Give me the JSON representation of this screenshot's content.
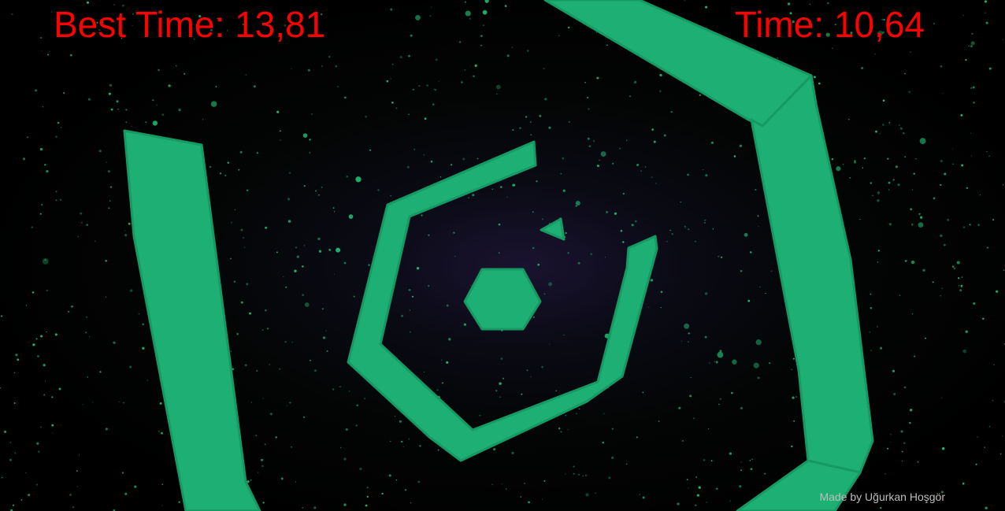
{
  "hud": {
    "best_time_label": "Best Time:",
    "best_time_value": "13,81",
    "time_label": "Time:",
    "time_value": "10,64"
  },
  "footer": {
    "credit": "Made by Uğurkan Hoşgör"
  },
  "colors": {
    "hud_text": "#ff0000",
    "walls": "#1daf73",
    "wall_edge": "#159a63",
    "stars": "#1fb872",
    "background": "#000000",
    "nebula": "#1a1330"
  },
  "icons": {
    "player": "triangle-cursor",
    "center": "hexagon-core"
  }
}
